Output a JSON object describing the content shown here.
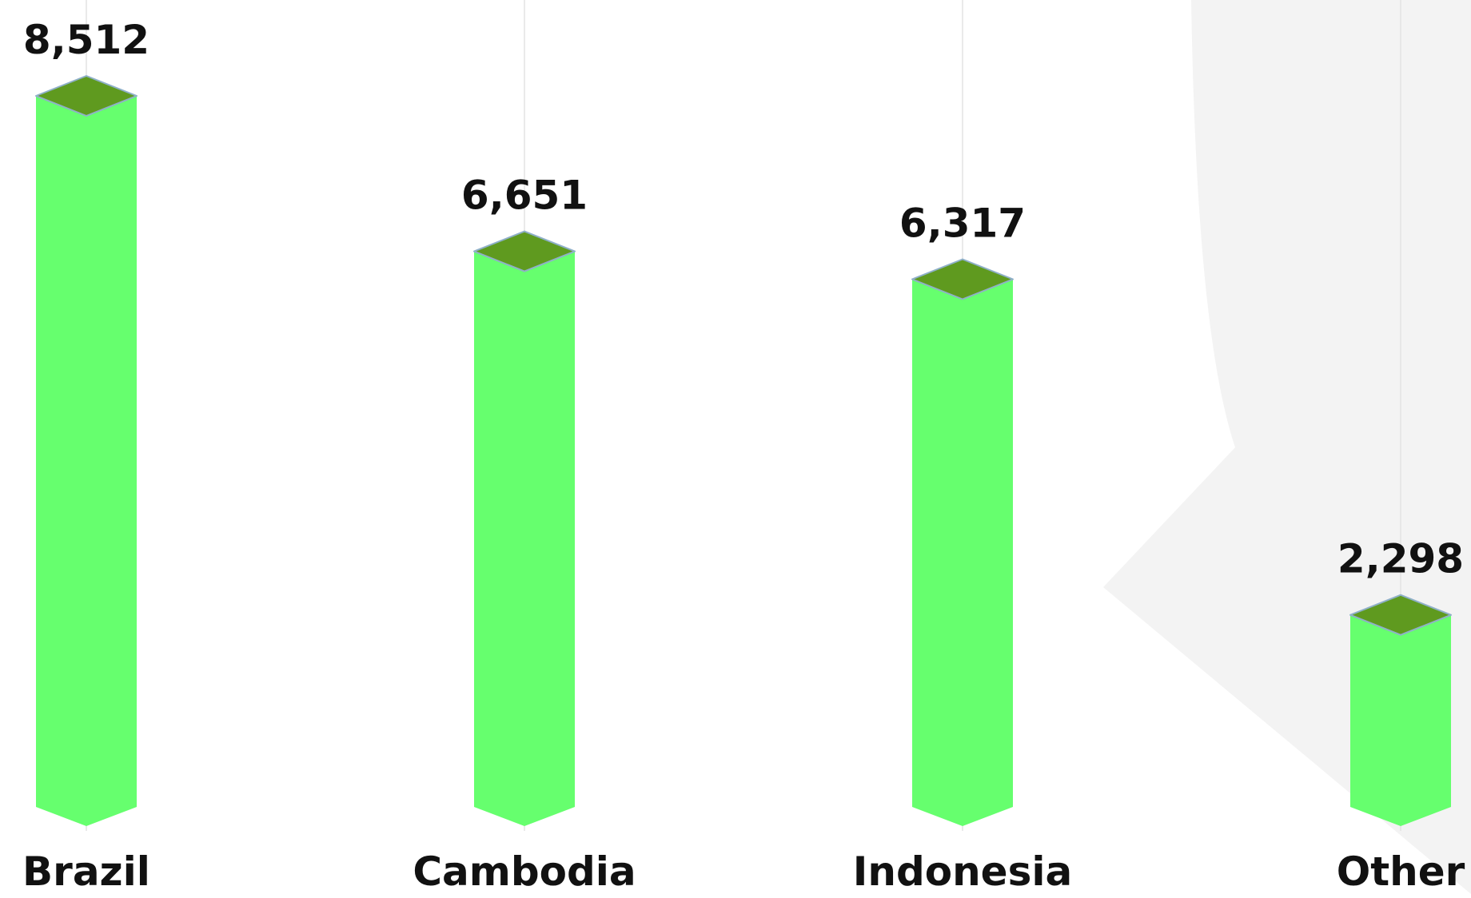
{
  "chart_data": {
    "type": "bar",
    "categories": [
      "Brazil",
      "Cambodia",
      "Indonesia",
      "Other"
    ],
    "values": [
      8512,
      6651,
      6317,
      2298
    ],
    "value_labels": [
      "8,512",
      "6,651",
      "6,317",
      "2,298"
    ],
    "title": "",
    "xlabel": "",
    "ylabel": "",
    "ylim": [
      0,
      8512
    ],
    "grid": "vertical",
    "legend": "none",
    "colors": {
      "bar_front": "#66ff6e",
      "bar_top": "#5f9a1f",
      "bar_edge": "#8fb0c8",
      "label_text": "#111111",
      "gridline": "#e3e3e3",
      "background_shape": "#f3f3f3"
    }
  }
}
